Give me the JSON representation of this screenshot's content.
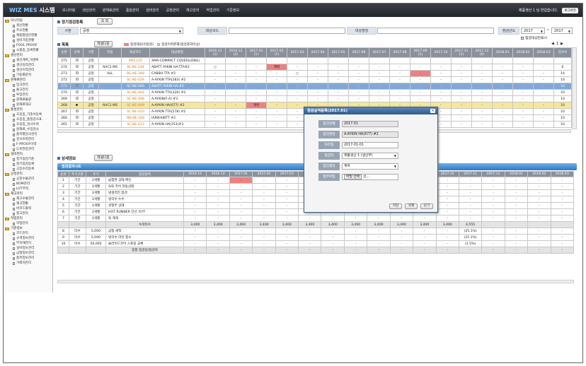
{
  "app": {
    "logo_main": "WIZ MES",
    "logo_sub": "시스템",
    "user_info": "제품생산 1 님 반갑습니다.",
    "logout": "로그아웃"
  },
  "menu": [
    "모니터링",
    "생산관리",
    "원재료관리",
    "품질관리",
    "설비관리",
    "공정관리",
    "재고관리",
    "작업관리",
    "기준정보"
  ],
  "sidebar": [
    {
      "label": "모니터링",
      "level": 0
    },
    {
      "label": "생산현황",
      "level": 1
    },
    {
      "label": "주요현황",
      "level": 1
    },
    {
      "label": "제품별생산현황",
      "level": 1
    },
    {
      "label": "설비가동현황",
      "level": 1
    },
    {
      "label": "FOOL PROOF",
      "level": 1
    },
    {
      "label": "소품종_등록현황",
      "level": 1
    },
    {
      "label": "생산관리",
      "level": 0
    },
    {
      "label": "생산계획_이벤트",
      "level": 1
    },
    {
      "label": "생산실적관리",
      "level": 1
    },
    {
      "label": "생산이력관리",
      "level": 1
    },
    {
      "label": "가동률분석",
      "level": 1
    },
    {
      "label": "원재료관리",
      "level": 0
    },
    {
      "label": "입고관리",
      "level": 1
    },
    {
      "label": "출고관리",
      "level": 1
    },
    {
      "label": "투입관리",
      "level": 1
    },
    {
      "label": "원재료불량",
      "level": 1
    },
    {
      "label": "원재료재고",
      "level": 1
    },
    {
      "label": "품질관리",
      "level": 0
    },
    {
      "label": "초중종_기준서등록",
      "level": 1
    },
    {
      "label": "초중종_품질검사표",
      "level": 1
    },
    {
      "label": "초중종_검사이력",
      "level": 1
    },
    {
      "label": "원재료_수입검사",
      "level": 1
    },
    {
      "label": "품목별검사관리",
      "level": 1
    },
    {
      "label": "검사이력관리",
      "level": 1
    },
    {
      "label": "F-PROOF이력",
      "level": 1
    },
    {
      "label": "도로현장관리",
      "level": 1
    },
    {
      "label": "설비관리",
      "level": 0
    },
    {
      "label": "정기점검기준",
      "level": 1
    },
    {
      "label": "정기점검등록",
      "level": 1
    },
    {
      "label": "고장수리등록",
      "level": 1
    },
    {
      "label": "공정관리",
      "level": 0
    },
    {
      "label": "공정수불관리",
      "level": 1
    },
    {
      "label": "BOM관리",
      "level": 1
    },
    {
      "label": "LOT추적",
      "level": 1
    },
    {
      "label": "재고관리",
      "level": 0
    },
    {
      "label": "재고수불관리",
      "level": 1
    },
    {
      "label": "재고현황",
      "level": 1
    },
    {
      "label": "바코드출력",
      "level": 1
    },
    {
      "label": "창고관리",
      "level": 1
    },
    {
      "label": "작업관리",
      "level": 0
    },
    {
      "label": "작업관리",
      "level": 1
    },
    {
      "label": "기준정보",
      "level": 0
    },
    {
      "label": "코드관리",
      "level": 1
    },
    {
      "label": "규격정보관리",
      "level": 1
    },
    {
      "label": "부자재관리",
      "level": 1
    },
    {
      "label": "설비정보관리",
      "level": 1
    },
    {
      "label": "금형정보관리",
      "level": 1
    },
    {
      "label": "품목정보관리",
      "level": 1
    },
    {
      "label": "거래처관리",
      "level": 1
    }
  ],
  "section1": {
    "title": "정기점검등록",
    "search_btn": "조 회",
    "gubun_label": "구분",
    "gubun_value": "공정",
    "target_code_label": "대상코드",
    "target_name_label": "대상명칭",
    "year_label": "점검년도",
    "year_from": "2017",
    "tilde": "~",
    "year_to": "2017",
    "checkbox_label": "점검대상만표시"
  },
  "list": {
    "title": "목록",
    "excel_btn": "엑셀다운",
    "legend1": "점검대상(미점검)",
    "legend2": "점검이력존재(점검결과이상)",
    "pager_page": "1",
    "headers": [
      "순번",
      "선택",
      "구분",
      "차종",
      "대상코드",
      "대상명칭",
      "2016.11\n(1)",
      "2016.12\n(2)",
      "2017.01\n(1)",
      "2017.02\n(1)",
      "2017.03",
      "2017.04",
      "2017.05",
      "2017.06",
      "2017.07",
      "2017.08",
      "2017.09\n(1)",
      "2017.10",
      "2017.11\n(1)",
      "2017.12\n(0)",
      "2018.01",
      "2018.02",
      "2018.03",
      "검사수"
    ],
    "rows": [
      {
        "no": "275",
        "gubun": "공정",
        "car": "",
        "code": "MR1125",
        "name": "XMA-COMPACT COVER(LONG)",
        "m": [
          "",
          "",
          "",
          "",
          "",
          "",
          "",
          "",
          "",
          "",
          "",
          "",
          "",
          "",
          "",
          "",
          ""
        ],
        "cnt": ""
      },
      {
        "no": "274",
        "gubun": "공정",
        "car": "AHC1-MS",
        "code": "BL-NE-248",
        "name": "ABATT AYKIN HA-TTA#2",
        "m": [
          "○",
          "-",
          "-",
          "계획",
          "-",
          "-",
          "-",
          "-",
          "-",
          "-",
          "-",
          "-",
          "-",
          "-",
          "-",
          "-",
          "-"
        ],
        "cnt": "6"
      },
      {
        "no": "273",
        "gubun": "공정",
        "car": "ALL",
        "code": "BG-NE-268",
        "name": "CABBH TTA #2",
        "m": [
          "-",
          "-",
          "-",
          "-",
          "○",
          "-",
          "-",
          "-",
          "-",
          "-",
          "-",
          "-",
          "-",
          "-",
          "-",
          "-",
          "-"
        ],
        "cnt": "14"
      },
      {
        "no": "272",
        "gubun": "공정",
        "car": "",
        "code": "SC-NE-029",
        "name": "A-AYKIN TTA(283) #2",
        "m": [
          "-",
          "-",
          "-",
          "-",
          "-",
          "-",
          "-",
          "-",
          "-",
          "-",
          "-",
          "-",
          "-",
          "-",
          "-",
          "-",
          "-"
        ],
        "cnt": "10"
      },
      {
        "no": "271",
        "gubun": "공정",
        "car": "",
        "code": "SC-NE-000",
        "name": "ABATT AYKIN HA-#2",
        "m": [
          "-",
          "-",
          "-",
          "-",
          "-",
          "-",
          "-",
          "-",
          "-",
          "-",
          "-",
          "-",
          "-",
          "-",
          "-",
          "-",
          "-"
        ],
        "cnt": "10"
      },
      {
        "no": "270",
        "gubun": "공정",
        "car": "",
        "code": "SC-NE-002",
        "name": "A-AYKIN TTA(326) #2",
        "m": [
          "-",
          "-",
          "-",
          "-",
          "-",
          "-",
          "-",
          "-",
          "-",
          "-",
          "-",
          "-",
          "-",
          "-",
          "-",
          "-",
          "-"
        ],
        "cnt": "10"
      },
      {
        "no": "269",
        "gubun": "공정",
        "car": "",
        "code": "SC-NE-008",
        "name": "A-AYKIN(F-A) #3",
        "m": [
          "-",
          "-",
          "-",
          "-",
          "-",
          "-",
          "-",
          "-",
          "-",
          "-",
          "-",
          "-",
          "-",
          "-",
          "-",
          "-",
          "-"
        ],
        "cnt": "10"
      },
      {
        "no": "268",
        "gubun": "공정",
        "car": "AHC1-MS",
        "code": "SC-NE-009",
        "name": "A-AYKIN HA(677) #2",
        "m": [
          "-",
          "-",
          "계획",
          "-",
          "-",
          "-",
          "-",
          "-",
          "-",
          "-",
          "-",
          "-",
          "-",
          "-",
          "-",
          "-",
          "-"
        ],
        "cnt": "10"
      },
      {
        "no": "267",
        "gubun": "공정",
        "car": "",
        "code": "SC-NE-010",
        "name": "A-AYKIN TTA(578) #2",
        "m": [
          "-",
          "-",
          "-",
          "-",
          "-",
          "-",
          "-",
          "-",
          "-",
          "-",
          "-",
          "-",
          "-",
          "-",
          "-",
          "-",
          "-"
        ],
        "cnt": "10"
      },
      {
        "no": "266",
        "gubun": "공정",
        "car": "",
        "code": "BN-NE-268",
        "name": "IAP8HHBTT #2",
        "m": [
          "-",
          "-",
          "-",
          "-",
          "-",
          "-",
          "-",
          "-",
          "-",
          "-",
          "-",
          "-",
          "-",
          "-",
          "-",
          "-",
          "-"
        ],
        "cnt": "10"
      },
      {
        "no": "265",
        "gubun": "공정",
        "car": "",
        "code": "SC-NE-013",
        "name": "A-AYKIN HA(253)#3",
        "m": [
          "-",
          "-",
          "-",
          "-",
          "-",
          "-",
          "-",
          "-",
          "-",
          "-",
          "-",
          "-",
          "-",
          "-",
          "-",
          "-",
          "-"
        ],
        "cnt": "10"
      }
    ]
  },
  "detail": {
    "title": "상세정보",
    "excel_btn": "엑셀다운",
    "bar_title": "점검결과시트",
    "headers": [
      "순번",
      "주기구분",
      "주기",
      "점검항목",
      "2016.11",
      "2016.12",
      "2017.01",
      "2017.02",
      "2017.03",
      "2017.04",
      "2017.05",
      "2017.06",
      "2017.07",
      "2017.08",
      "2017.09",
      "2017.10",
      "2017.11",
      "2017.12",
      "2018.01",
      "2018.02",
      "2018.03"
    ],
    "rows": [
      {
        "no": "1",
        "type": "기간",
        "cycle": "3개월",
        "item": "습합면 상태 확인",
        "v": [
          "-",
          "-",
          "-",
          "-",
          "-",
          "-",
          "-",
          "-",
          "-",
          "-",
          "-",
          "-",
          "-",
          "-",
          "-",
          "-",
          "-"
        ]
      },
      {
        "no": "2",
        "type": "기간",
        "cycle": "3개월",
        "item": "S/D 코어 작동상태",
        "v": [
          "-",
          "-",
          "-",
          "-",
          "-",
          "-",
          "-",
          "-",
          "-",
          "-",
          "-",
          "-",
          "-",
          "-",
          "-",
          "-",
          "-"
        ]
      },
      {
        "no": "3",
        "type": "기간",
        "cycle": "3개월",
        "item": "냉골러진 점검",
        "v": [
          "-",
          "-",
          "-",
          "-",
          "-",
          "-",
          "-",
          "-",
          "-",
          "-",
          "-",
          "-",
          "-",
          "-",
          "-",
          "-",
          "-"
        ]
      },
      {
        "no": "4",
        "type": "기간",
        "cycle": "3개월",
        "item": "냉각수 누수",
        "v": [
          "-",
          "-",
          "-",
          "-",
          "-",
          "-",
          "-",
          "-",
          "-",
          "-",
          "-",
          "-",
          "-",
          "-",
          "-",
          "-",
          "-"
        ]
      },
      {
        "no": "5",
        "type": "기간",
        "cycle": "3개월",
        "item": "성형부 상태",
        "v": [
          "-",
          "-",
          "-",
          "-",
          "-",
          "-",
          "-",
          "-",
          "-",
          "-",
          "-",
          "-",
          "-",
          "-",
          "-",
          "-",
          "-"
        ]
      },
      {
        "no": "6",
        "type": "기간",
        "cycle": "3개월",
        "item": "HOT RUNNER 단선 유/무",
        "v": [
          "-",
          "-",
          "-",
          "-",
          "-",
          "-",
          "-",
          "-",
          "-",
          "-",
          "-",
          "-",
          "-",
          "-",
          "-",
          "-",
          "-"
        ]
      },
      {
        "no": "7",
        "type": "기간",
        "cycle": "3개월",
        "item": "독 계게",
        "v": [
          "-",
          "-",
          "-",
          "-",
          "-",
          "-",
          "-",
          "-",
          "-",
          "-",
          "-",
          "-",
          "-",
          "-",
          "-",
          "-",
          "-"
        ]
      },
      {
        "no": "",
        "type": "",
        "cycle": "",
        "item": "누적타수",
        "cum": true,
        "v": [
          "3,400",
          "3,400",
          "3,400",
          "3,400",
          "3,400",
          "3,400",
          "3,400",
          "3,400",
          "3,400",
          "3,400",
          "3,400",
          "3,400",
          "4,555",
          "",
          "",
          "",
          ""
        ]
      },
      {
        "no": "8",
        "type": "타수",
        "cycle": "5,000",
        "item": "금형 세척",
        "v": [
          "-",
          "-",
          "-",
          "-",
          "-",
          "-",
          "-",
          "-",
          "-",
          "-",
          "-",
          "-",
          "(25.1%)",
          "-",
          "-",
          "-",
          "-"
        ]
      },
      {
        "no": "9",
        "type": "타수",
        "cycle": "5,000",
        "item": "냉각수 라인 청소",
        "v": [
          "-",
          "-",
          "-",
          "-",
          "-",
          "-",
          "-",
          "-",
          "-",
          "-",
          "-",
          "-",
          "(25.1%)",
          "-",
          "-",
          "-",
          "-"
        ]
      },
      {
        "no": "10",
        "type": "타수",
        "cycle": "50,000",
        "item": "슬라이드코어 스프링 교체",
        "v": [
          "-",
          "-",
          "-",
          "-",
          "-",
          "-",
          "-",
          "-",
          "-",
          "-",
          "-",
          "-",
          "(2.5%)",
          "-",
          "-",
          "-",
          "-"
        ]
      },
      {
        "no": "",
        "type": "",
        "cycle": "",
        "item": "종합 점검일/점검자",
        "cum": true,
        "v": [
          "-",
          "-",
          "-",
          "-",
          "-",
          "-",
          "-",
          "-",
          "-",
          "-",
          "-",
          "-",
          "-",
          "-",
          "-",
          "-",
          "-"
        ]
      }
    ]
  },
  "modal": {
    "title": "점검실적등록(2017.01)",
    "close": "×",
    "rows": [
      {
        "label": "점검년월",
        "value": "2017.01",
        "editable": false
      },
      {
        "label": "점검명칭",
        "value": "A-AYKIN HA(677) #2",
        "editable": false
      },
      {
        "label": "처리일",
        "value": "2017-01-01",
        "editable": true
      },
      {
        "label": "점검자",
        "value": "제품생산 1 (생산부)",
        "editable": true,
        "select": true
      },
      {
        "label": "점검결과",
        "value": "계획",
        "editable": true,
        "select": true
      },
      {
        "label": "첨부파일",
        "value": "파일 선택",
        "editable": true,
        "file": true,
        "file_note": "선..."
      }
    ],
    "buttons": [
      "저장",
      "삭제",
      "닫기"
    ]
  },
  "colors": {
    "accent": "#2f78c4",
    "plan_red": "#f08080",
    "selected_blue": "#7fa8d6",
    "selected_yellow": "#f5e79c"
  }
}
